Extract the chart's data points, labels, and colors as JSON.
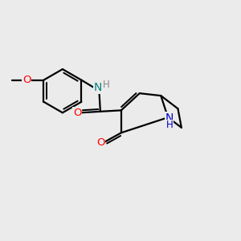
{
  "background_color": "#ebebeb",
  "atom_colors": {
    "C": "#000000",
    "N_blue": "#0000cd",
    "N_teal": "#008080",
    "O": "#ff0000",
    "H_gray": "#888888"
  },
  "bond_color": "#000000",
  "bond_width": 1.6,
  "figsize": [
    3.0,
    3.0
  ],
  "dpi": 100,
  "xlim": [
    0,
    10
  ],
  "ylim": [
    0,
    10
  ]
}
